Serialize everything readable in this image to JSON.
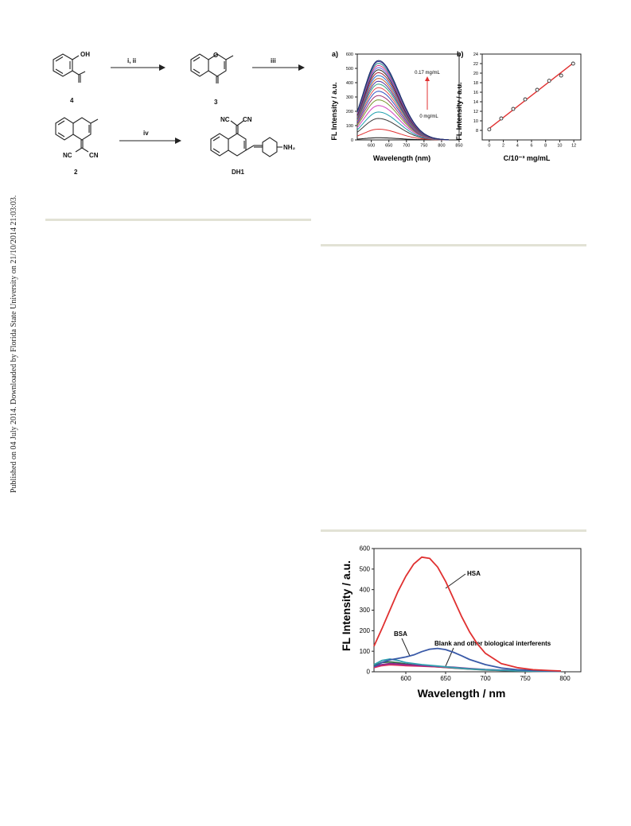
{
  "sidebar": {
    "text": "Published on 04 July 2014. Downloaded by Florida State University on 21/10/2014 21:03:03."
  },
  "scheme": {
    "labels": {
      "compound_4": "4",
      "compound_3": "3",
      "compound_2": "2",
      "compound_dh1": "DH1",
      "oh": "OH",
      "nc_left": "NC",
      "cn_right": "CN",
      "nh2": "NH₂",
      "o_ring": "O"
    },
    "steps": {
      "step1": "i, ii",
      "step2": "iii",
      "step3": "iv"
    }
  },
  "figure_ab": {
    "panel_a": {
      "label": "a)",
      "ylabel": "FL Intensity / a.u.",
      "xlabel": "Wavelength (nm)",
      "annot_top": "0.17 mg/mL",
      "annot_bottom": "0 mg/mL",
      "xticks": [
        "600",
        "650",
        "700",
        "750",
        "800",
        "850"
      ],
      "yticks": [
        "0",
        "100",
        "200",
        "300",
        "400",
        "500",
        "600"
      ]
    },
    "panel_b": {
      "label": "b)",
      "ylabel": "FL Intensity / a.u.",
      "xlabel": "C/10⁻³ mg/mL",
      "xticks": [
        "0",
        "2",
        "4",
        "6",
        "8",
        "10",
        "12"
      ],
      "yticks": [
        "8",
        "10",
        "12",
        "14",
        "16",
        "18",
        "20",
        "22",
        "24"
      ]
    }
  },
  "figure_c": {
    "ylabel": "FL Intensity / a.u.",
    "xlabel": "Wavelength / nm",
    "xticks": [
      "600",
      "650",
      "700",
      "750",
      "800"
    ],
    "yticks": [
      "0",
      "100",
      "200",
      "300",
      "400",
      "500",
      "600"
    ],
    "legend_hsa": "HSA",
    "legend_bsa": "BSA",
    "legend_blank": "Blank and other biological interferents"
  },
  "chart_data": [
    {
      "type": "line",
      "xlabel": "Wavelength (nm)",
      "ylabel": "FL Intensity / a.u.",
      "xlim": [
        560,
        850
      ],
      "ylim": [
        0,
        600
      ],
      "peak_x": 620,
      "series_peaks": [
        15,
        75,
        150,
        195,
        240,
        280,
        310,
        340,
        365,
        390,
        410,
        430,
        450,
        470,
        490,
        505,
        520,
        535,
        548,
        555
      ],
      "series_colors": [
        "#111111",
        "#e03030",
        "#3a3a3a",
        "#1e9fae",
        "#d040c0",
        "#7a9a30",
        "#a03070",
        "#3050c0",
        "#e05050",
        "#30a080",
        "#5030a0",
        "#c06030",
        "#2070d0",
        "#a02030",
        "#2a2a2a",
        "#6060e0",
        "#d03080",
        "#208080",
        "#3a3a9a",
        "#1a2a6a"
      ],
      "annotations": [
        "0.17 mg/mL",
        "0 mg/mL"
      ]
    },
    {
      "type": "scatter",
      "xlabel": "C/10⁻³ mg/mL",
      "ylabel": "FL Intensity / a.u.",
      "xlim": [
        -1,
        13
      ],
      "ylim": [
        6,
        24
      ],
      "x": [
        0,
        1.7,
        3.4,
        5.1,
        6.8,
        8.5,
        10.2,
        11.9
      ],
      "y": [
        8.2,
        10.5,
        12.5,
        14.5,
        16.5,
        18.4,
        19.5,
        22.0
      ],
      "fit_line": {
        "x": [
          0,
          11.9
        ],
        "y": [
          8.4,
          22.1
        ],
        "color": "#e03030"
      }
    },
    {
      "type": "line",
      "xlabel": "Wavelength / nm",
      "ylabel": "FL Intensity / a.u.",
      "xlim": [
        560,
        820
      ],
      "ylim": [
        0,
        600
      ],
      "series": [
        {
          "name": "HSA",
          "color": "#e03030",
          "x": [
            560,
            570,
            580,
            590,
            600,
            610,
            620,
            630,
            640,
            650,
            660,
            670,
            680,
            690,
            700,
            720,
            740,
            760,
            780,
            795
          ],
          "y": [
            125,
            210,
            300,
            390,
            465,
            525,
            558,
            552,
            510,
            440,
            355,
            270,
            195,
            135,
            90,
            40,
            20,
            10,
            6,
            4
          ]
        },
        {
          "name": "BSA",
          "color": "#3a5aa8",
          "x": [
            560,
            570,
            580,
            590,
            600,
            610,
            620,
            630,
            640,
            650,
            660,
            670,
            680,
            700,
            720,
            740,
            760,
            780,
            795
          ],
          "y": [
            25,
            45,
            58,
            65,
            72,
            82,
            98,
            110,
            114,
            108,
            95,
            78,
            60,
            35,
            18,
            10,
            6,
            4,
            3
          ]
        },
        {
          "name": "Blank and other biological interferents",
          "color": "#30a0b0",
          "x": [
            560,
            570,
            580,
            590,
            600,
            620,
            640,
            660,
            680,
            700,
            720,
            740,
            760,
            780,
            795
          ],
          "y": [
            35,
            55,
            62,
            55,
            45,
            35,
            28,
            20,
            14,
            10,
            7,
            5,
            3,
            2,
            2
          ]
        },
        {
          "name": "",
          "color": "#8a2a8a",
          "x": [
            560,
            570,
            580,
            590,
            600,
            620,
            640,
            660,
            680,
            700,
            720,
            740,
            760,
            780,
            795
          ],
          "y": [
            25,
            35,
            40,
            38,
            35,
            30,
            26,
            22,
            16,
            11,
            8,
            6,
            4,
            3,
            2
          ]
        },
        {
          "name": "",
          "color": "#e03060",
          "x": [
            560,
            570,
            580,
            590,
            600,
            620,
            640,
            660,
            680,
            700,
            720,
            740,
            760,
            780,
            795
          ],
          "y": [
            20,
            30,
            34,
            32,
            30,
            27,
            24,
            19,
            14,
            10,
            7,
            5,
            3,
            2,
            2
          ]
        },
        {
          "name": "",
          "color": "#2a6a40",
          "x": [
            560,
            570,
            580,
            590,
            600,
            620,
            640,
            660,
            680,
            700,
            720,
            740,
            760,
            780,
            795
          ],
          "y": [
            30,
            45,
            48,
            44,
            38,
            30,
            24,
            18,
            13,
            9,
            6,
            4,
            3,
            2,
            2
          ]
        }
      ]
    }
  ]
}
